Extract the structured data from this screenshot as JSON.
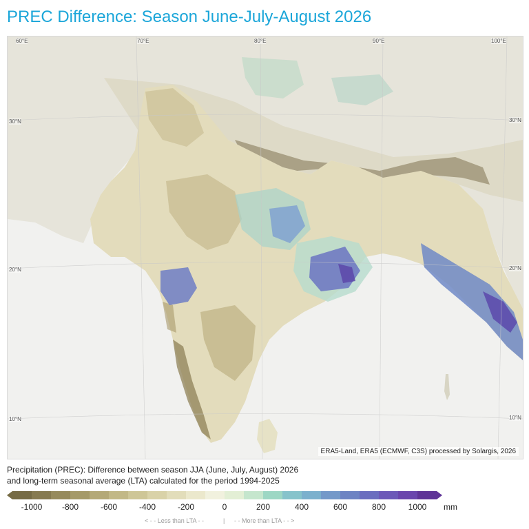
{
  "title": "PREC Difference: Season June-July-August 2026",
  "map": {
    "credit": "ERA5-Land, ERA5 (ECMWF, C3S) processed by Solargis, 2026",
    "grid_labels": {
      "lon_60": "60°E",
      "lon_70": "70°E",
      "lon_80": "80°E",
      "lon_90": "90°E",
      "lon_100": "100°E",
      "lat_30_left": "30°N",
      "lat_30_right": "30°N",
      "lat_20_left": "20°N",
      "lat_20_right": "20°N",
      "lat_10_left": "10°N",
      "lat_10_right": "10°N"
    },
    "colors": {
      "ocean": "#f1f1ef",
      "land_outside": "#e6e4da",
      "mountain": "#e3dfcf"
    }
  },
  "caption": {
    "line1": "Precipitation (PREC): Difference between season JJA (June, July, August) 2026",
    "line2": "and long-term seasonal average (LTA) calculated for the period 1994-2025"
  },
  "legend": {
    "colors": [
      "#766b45",
      "#867a50",
      "#968a5c",
      "#a59a68",
      "#b4a977",
      "#c2b886",
      "#cec697",
      "#d9d2a8",
      "#e2ddba",
      "#ebe8cc",
      "#f1f1de",
      "#e3efd5",
      "#c5e6cd",
      "#9dd7c4",
      "#86c3cb",
      "#7bb0cd",
      "#7499c9",
      "#6d83c3",
      "#6a6dbf",
      "#6c58b8",
      "#6a45ad",
      "#5f3497"
    ],
    "ticks": [
      "-1000",
      "-800",
      "-600",
      "-400",
      "-200",
      "0",
      "200",
      "400",
      "600",
      "800",
      "1000"
    ],
    "unit": "mm",
    "less_label": "< - - Less than LTA - -",
    "separator": "|",
    "more_label": "- - More than LTA - - >"
  }
}
